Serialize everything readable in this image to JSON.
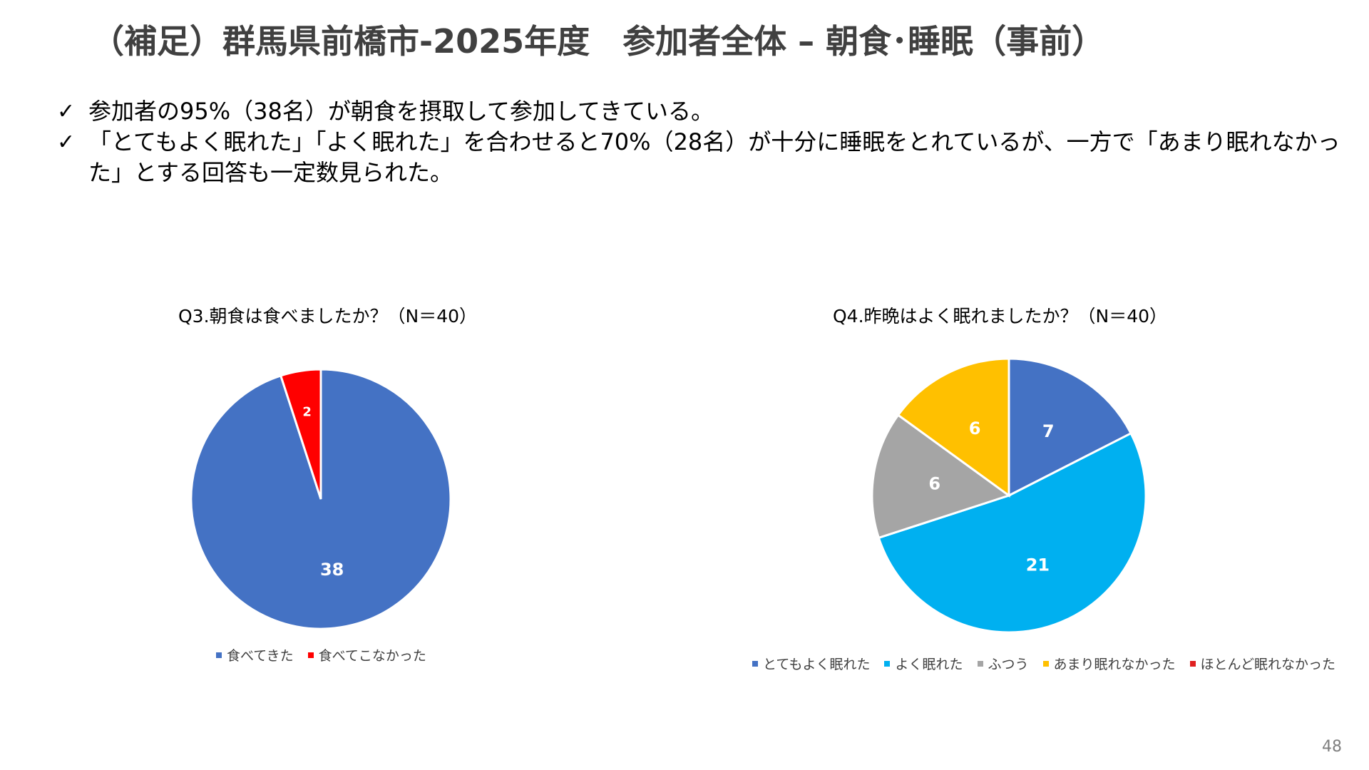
{
  "slide": {
    "title": "（補足）群馬県前橋市-2025年度　参加者全体 – 朝食･睡眠（事前）",
    "check_mark": "✓",
    "bullets": [
      "参加者の95%（38名）が朝食を摂取して参加してきている。",
      "「とてもよく眠れた」「よく眠れた」を合わせると70%（28名）が十分に睡眠をとれているが、一方で「あまり眠れなかった」とする回答も一定数見られた。"
    ],
    "page_number": "48"
  },
  "chart_data": [
    {
      "type": "pie",
      "title": "Q3.朝食は食べましたか？（N＝40）",
      "categories": [
        "食べてきた",
        "食べてこなかった"
      ],
      "values": [
        38,
        2
      ],
      "colors": [
        "#4472C4",
        "#FF0000"
      ],
      "legend_position": "bottom",
      "start_angle": "top-clockwise"
    },
    {
      "type": "pie",
      "title": "Q4.昨晩はよく眠れましたか？（N＝40）",
      "categories": [
        "とてもよく眠れた",
        "よく眠れた",
        "ふつう",
        "あまり眠れなかった",
        "ほとんど眠れなかった"
      ],
      "values": [
        7,
        21,
        6,
        6,
        0
      ],
      "colors": [
        "#4472C4",
        "#00B0F0",
        "#A5A5A5",
        "#FFC000",
        "#E02020"
      ],
      "legend_position": "bottom",
      "start_angle": "top-clockwise"
    }
  ]
}
